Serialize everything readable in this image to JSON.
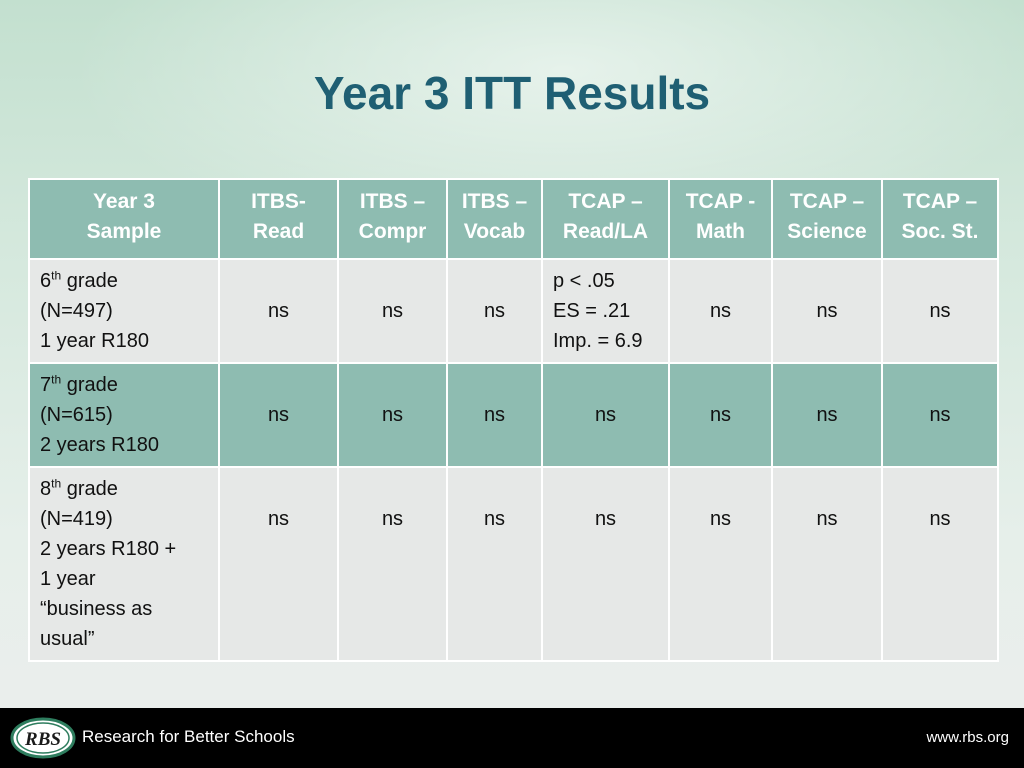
{
  "title": "Year 3 ITT Results",
  "table": {
    "headers": [
      [
        "Year 3",
        "Sample"
      ],
      [
        "ITBS-",
        "Read"
      ],
      [
        "ITBS –",
        "Compr"
      ],
      [
        "ITBS –",
        "Vocab"
      ],
      [
        "TCAP –",
        "Read/LA"
      ],
      [
        "TCAP -",
        "Math"
      ],
      [
        "TCAP –",
        "Science"
      ],
      [
        "TCAP –",
        "Soc. St."
      ]
    ],
    "rows": [
      {
        "grade_num": "6",
        "grade_sup": "th",
        "grade_word": " grade",
        "sample_lines": [
          "(N=497)",
          "1 year R180"
        ],
        "values": [
          "ns",
          "ns",
          "ns",
          [
            "p < .05",
            "ES = .21",
            "Imp. = 6.9"
          ],
          "ns",
          "ns",
          "ns"
        ]
      },
      {
        "grade_num": "7",
        "grade_sup": "th",
        "grade_word": " grade",
        "sample_lines": [
          "(N=615)",
          "2 years R180"
        ],
        "values": [
          "ns",
          "ns",
          "ns",
          "ns",
          "ns",
          "ns",
          "ns"
        ]
      },
      {
        "grade_num": "8",
        "grade_sup": "th",
        "grade_word": " grade",
        "sample_lines": [
          "(N=419)",
          "2 years R180 +",
          "1 year",
          "“business as",
          "usual”"
        ],
        "values": [
          "ns",
          "ns",
          "ns",
          "ns",
          "ns",
          "ns",
          "ns"
        ]
      }
    ]
  },
  "footer": {
    "logo_text": "RBS",
    "org_name": "Research for Better Schools",
    "website": "www.rbs.org"
  },
  "colors": {
    "title": "#1f5f73",
    "header_bg": "#8ebcb1",
    "row_light": "#e6e8e7",
    "row_dark": "#8ebcb1",
    "footer_bg": "#000000"
  }
}
